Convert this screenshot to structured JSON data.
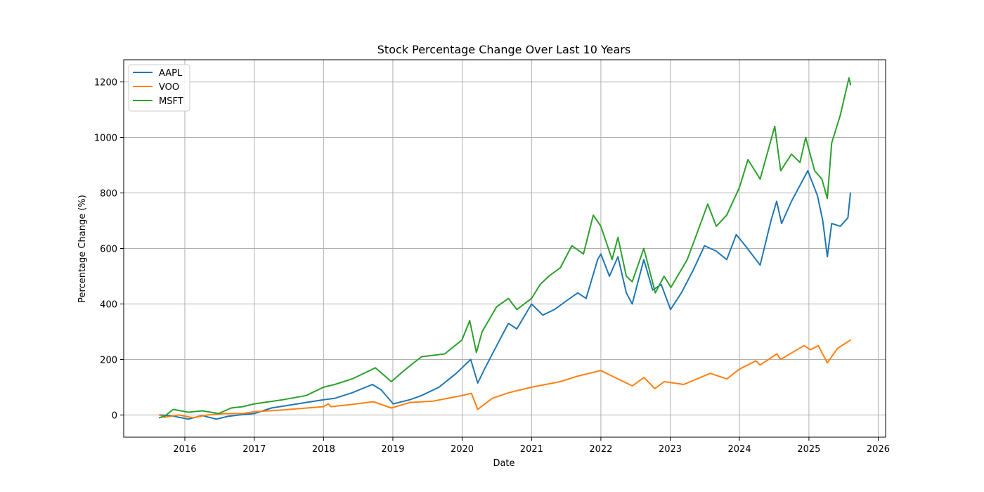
{
  "chart_data": {
    "type": "line",
    "title": "Stock Percentage Change Over Last 10 Years",
    "xlabel": "Date",
    "ylabel": "Percentage Change (%)",
    "x_ticks": [
      "2016",
      "2017",
      "2018",
      "2019",
      "2020",
      "2021",
      "2022",
      "2023",
      "2024",
      "2025",
      "2026"
    ],
    "y_ticks": [
      0,
      200,
      400,
      600,
      800,
      1000,
      1200
    ],
    "xlim": [
      "2015-02-13",
      "2026-02-09"
    ],
    "ylim": [
      -80,
      1280
    ],
    "grid": true,
    "legend_position": "top-left",
    "series": [
      {
        "name": "AAPL",
        "color": "#1f77b4",
        "points": [
          [
            "2015-08-20",
            0
          ],
          [
            "2015-10-15",
            -2
          ],
          [
            "2016-01-20",
            -15
          ],
          [
            "2016-04-01",
            -2
          ],
          [
            "2016-06-15",
            -15
          ],
          [
            "2016-08-15",
            -5
          ],
          [
            "2016-10-15",
            0
          ],
          [
            "2017-01-01",
            5
          ],
          [
            "2017-04-01",
            25
          ],
          [
            "2017-07-01",
            35
          ],
          [
            "2017-10-01",
            45
          ],
          [
            "2018-01-01",
            55
          ],
          [
            "2018-03-01",
            60
          ],
          [
            "2018-06-01",
            80
          ],
          [
            "2018-09-15",
            110
          ],
          [
            "2018-11-01",
            90
          ],
          [
            "2019-01-03",
            40
          ],
          [
            "2019-04-01",
            55
          ],
          [
            "2019-06-01",
            70
          ],
          [
            "2019-09-01",
            100
          ],
          [
            "2019-12-01",
            150
          ],
          [
            "2020-02-15",
            200
          ],
          [
            "2020-03-23",
            115
          ],
          [
            "2020-05-01",
            170
          ],
          [
            "2020-07-01",
            250
          ],
          [
            "2020-09-01",
            330
          ],
          [
            "2020-10-15",
            310
          ],
          [
            "2021-01-01",
            400
          ],
          [
            "2021-03-01",
            360
          ],
          [
            "2021-05-01",
            380
          ],
          [
            "2021-07-01",
            410
          ],
          [
            "2021-09-01",
            440
          ],
          [
            "2021-10-15",
            420
          ],
          [
            "2021-12-15",
            560
          ],
          [
            "2022-01-01",
            580
          ],
          [
            "2022-02-15",
            500
          ],
          [
            "2022-04-01",
            570
          ],
          [
            "2022-05-15",
            440
          ],
          [
            "2022-06-15",
            400
          ],
          [
            "2022-08-15",
            560
          ],
          [
            "2022-10-01",
            450
          ],
          [
            "2022-11-15",
            470
          ],
          [
            "2023-01-03",
            380
          ],
          [
            "2023-03-01",
            440
          ],
          [
            "2023-05-01",
            520
          ],
          [
            "2023-07-01",
            610
          ],
          [
            "2023-09-01",
            590
          ],
          [
            "2023-10-26",
            560
          ],
          [
            "2023-12-15",
            650
          ],
          [
            "2024-02-01",
            610
          ],
          [
            "2024-04-19",
            540
          ],
          [
            "2024-06-15",
            700
          ],
          [
            "2024-07-15",
            770
          ],
          [
            "2024-08-10",
            690
          ],
          [
            "2024-10-01",
            770
          ],
          [
            "2024-12-26",
            880
          ],
          [
            "2025-02-15",
            790
          ],
          [
            "2025-03-15",
            700
          ],
          [
            "2025-04-08",
            570
          ],
          [
            "2025-05-01",
            690
          ],
          [
            "2025-06-15",
            680
          ],
          [
            "2025-07-25",
            710
          ],
          [
            "2025-08-08",
            800
          ]
        ]
      },
      {
        "name": "VOO",
        "color": "#ff7f0e",
        "points": [
          [
            "2015-08-20",
            0
          ],
          [
            "2015-09-15",
            -8
          ],
          [
            "2015-12-01",
            0
          ],
          [
            "2016-02-11",
            -10
          ],
          [
            "2016-05-01",
            0
          ],
          [
            "2016-08-01",
            5
          ],
          [
            "2016-11-01",
            5
          ],
          [
            "2017-01-01",
            12
          ],
          [
            "2017-06-01",
            18
          ],
          [
            "2017-12-31",
            30
          ],
          [
            "2018-01-26",
            40
          ],
          [
            "2018-02-09",
            30
          ],
          [
            "2018-06-01",
            38
          ],
          [
            "2018-09-20",
            48
          ],
          [
            "2018-12-24",
            25
          ],
          [
            "2019-04-01",
            45
          ],
          [
            "2019-08-01",
            50
          ],
          [
            "2019-12-31",
            70
          ],
          [
            "2020-02-19",
            78
          ],
          [
            "2020-03-23",
            20
          ],
          [
            "2020-06-08",
            60
          ],
          [
            "2020-09-02",
            80
          ],
          [
            "2020-12-31",
            100
          ],
          [
            "2021-06-01",
            120
          ],
          [
            "2021-09-01",
            140
          ],
          [
            "2021-12-31",
            160
          ],
          [
            "2022-03-01",
            140
          ],
          [
            "2022-06-16",
            105
          ],
          [
            "2022-08-16",
            135
          ],
          [
            "2022-10-12",
            95
          ],
          [
            "2022-12-01",
            120
          ],
          [
            "2023-03-13",
            110
          ],
          [
            "2023-07-31",
            150
          ],
          [
            "2023-10-27",
            130
          ],
          [
            "2023-12-31",
            165
          ],
          [
            "2024-03-28",
            195
          ],
          [
            "2024-04-19",
            180
          ],
          [
            "2024-07-16",
            220
          ],
          [
            "2024-08-05",
            200
          ],
          [
            "2024-12-06",
            250
          ],
          [
            "2025-01-10",
            235
          ],
          [
            "2025-02-19",
            250
          ],
          [
            "2025-04-08",
            188
          ],
          [
            "2025-06-01",
            240
          ],
          [
            "2025-08-08",
            270
          ]
        ]
      },
      {
        "name": "MSFT",
        "color": "#2ca02c",
        "points": [
          [
            "2015-08-20",
            -10
          ],
          [
            "2015-09-15",
            -5
          ],
          [
            "2015-11-01",
            20
          ],
          [
            "2016-01-20",
            10
          ],
          [
            "2016-04-01",
            15
          ],
          [
            "2016-06-27",
            5
          ],
          [
            "2016-09-01",
            25
          ],
          [
            "2016-11-01",
            30
          ],
          [
            "2017-01-01",
            40
          ],
          [
            "2017-06-01",
            55
          ],
          [
            "2017-10-01",
            70
          ],
          [
            "2018-01-01",
            100
          ],
          [
            "2018-03-01",
            110
          ],
          [
            "2018-06-01",
            130
          ],
          [
            "2018-10-01",
            170
          ],
          [
            "2018-12-24",
            120
          ],
          [
            "2019-03-01",
            160
          ],
          [
            "2019-06-01",
            210
          ],
          [
            "2019-10-01",
            220
          ],
          [
            "2019-12-31",
            270
          ],
          [
            "2020-02-10",
            340
          ],
          [
            "2020-03-16",
            225
          ],
          [
            "2020-04-15",
            300
          ],
          [
            "2020-07-01",
            390
          ],
          [
            "2020-09-01",
            420
          ],
          [
            "2020-10-15",
            380
          ],
          [
            "2021-01-01",
            420
          ],
          [
            "2021-02-15",
            470
          ],
          [
            "2021-04-01",
            500
          ],
          [
            "2021-06-01",
            530
          ],
          [
            "2021-08-01",
            610
          ],
          [
            "2021-10-01",
            580
          ],
          [
            "2021-11-22",
            720
          ],
          [
            "2022-01-01",
            680
          ],
          [
            "2022-03-01",
            560
          ],
          [
            "2022-04-01",
            640
          ],
          [
            "2022-05-15",
            500
          ],
          [
            "2022-06-15",
            480
          ],
          [
            "2022-08-15",
            600
          ],
          [
            "2022-10-15",
            440
          ],
          [
            "2022-11-30",
            500
          ],
          [
            "2023-01-05",
            460
          ],
          [
            "2023-04-01",
            560
          ],
          [
            "2023-07-18",
            760
          ],
          [
            "2023-09-01",
            680
          ],
          [
            "2023-10-26",
            720
          ],
          [
            "2024-01-01",
            820
          ],
          [
            "2024-02-15",
            920
          ],
          [
            "2024-04-19",
            850
          ],
          [
            "2024-07-05",
            1040
          ],
          [
            "2024-08-05",
            880
          ],
          [
            "2024-10-01",
            940
          ],
          [
            "2024-11-15",
            910
          ],
          [
            "2024-12-15",
            1000
          ],
          [
            "2025-01-31",
            880
          ],
          [
            "2025-03-10",
            850
          ],
          [
            "2025-04-08",
            780
          ],
          [
            "2025-05-01",
            980
          ],
          [
            "2025-06-15",
            1080
          ],
          [
            "2025-07-31",
            1215
          ],
          [
            "2025-08-08",
            1190
          ]
        ]
      }
    ]
  }
}
